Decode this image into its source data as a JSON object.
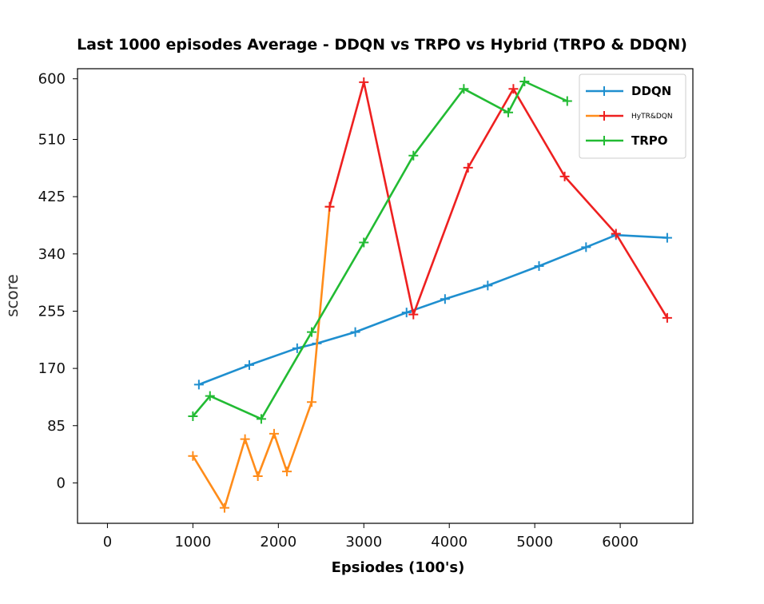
{
  "chart_data": {
    "type": "line",
    "title": "Last 1000 episodes Average - DDQN vs TRPO vs Hybrid (TRPO & DDQN)",
    "xlabel": "Epsiodes (100's)",
    "ylabel": "score",
    "xlim": [
      -350,
      6850
    ],
    "ylim": [
      -60,
      615
    ],
    "xticks": [
      0,
      1000,
      2000,
      3000,
      4000,
      5000,
      6000
    ],
    "yticks": [
      0,
      85,
      170,
      255,
      340,
      425,
      510,
      600
    ],
    "grid": false,
    "legend_position": "top-right",
    "series": [
      {
        "name": "DDQN",
        "color": "#1f8fcf",
        "x": [
          1070,
          1660,
          2220,
          2450,
          2900,
          3500,
          3950,
          4450,
          5050,
          5600,
          5950,
          6550
        ],
        "y": [
          146,
          175,
          200,
          207,
          224,
          253,
          273,
          293,
          322,
          350,
          368,
          364
        ]
      },
      {
        "name": "HyTR&DQN",
        "legend_names": [
          "HyTR&DQN"
        ],
        "segments": [
          {
            "color": "#ff8c1a",
            "x": [
              1000,
              1370,
              1610,
              1760,
              1950,
              2100,
              2390,
              2600
            ],
            "y": [
              40,
              -37,
              65,
              10,
              73,
              17,
              120,
              410
            ]
          },
          {
            "color": "#ee2020",
            "x": [
              2600,
              3000,
              3580,
              4220,
              4750,
              5350,
              5950,
              6550
            ],
            "y": [
              410,
              595,
              250,
              468,
              585,
              455,
              370,
              245
            ]
          }
        ]
      },
      {
        "name": "TRPO",
        "color": "#22bb33",
        "x": [
          1000,
          1200,
          1800,
          2390,
          3000,
          3580,
          4170,
          4690,
          4880,
          5380
        ],
        "y": [
          99,
          129,
          95,
          224,
          357,
          486,
          585,
          550,
          596,
          567
        ]
      }
    ]
  }
}
